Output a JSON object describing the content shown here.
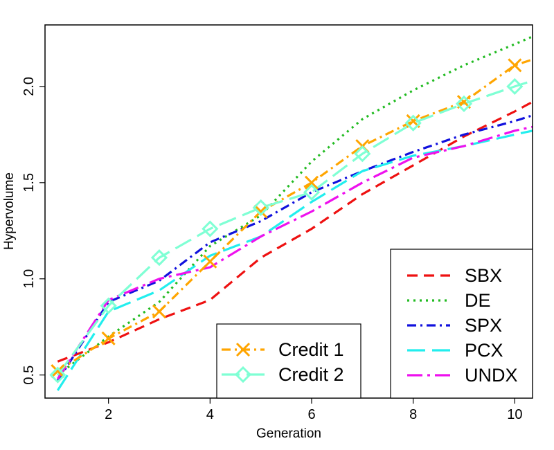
{
  "chart_data": {
    "type": "line",
    "title": "",
    "xlabel": "Generation",
    "ylabel": "Hypervolume",
    "xlim": [
      0.75,
      10.35
    ],
    "ylim": [
      0.38,
      2.32
    ],
    "x_ticks": [
      2,
      4,
      6,
      8,
      10
    ],
    "y_ticks": [
      0.5,
      1.0,
      1.5,
      2.0
    ],
    "x_tick_labels": [
      "2",
      "4",
      "6",
      "8",
      "10"
    ],
    "y_tick_labels": [
      "0.5",
      "1.0",
      "1.5",
      "2.0"
    ],
    "grid": false,
    "legends": [
      {
        "placement": "bottom-right",
        "entries": [
          "SBX",
          "DE",
          "SPX",
          "PCX",
          "UNDX"
        ]
      },
      {
        "placement": "bottom-center",
        "entries": [
          "Credit 1",
          "Credit 2"
        ]
      }
    ],
    "series": [
      {
        "name": "SBX",
        "color": "#ee1111",
        "dash": "dashed",
        "marker": "none",
        "x": [
          1,
          2,
          3,
          4,
          5,
          6,
          7,
          8,
          9,
          10,
          10.35
        ],
        "y": [
          0.57,
          0.67,
          0.79,
          0.89,
          1.11,
          1.26,
          1.44,
          1.59,
          1.74,
          1.87,
          1.92
        ]
      },
      {
        "name": "DE",
        "color": "#22bb22",
        "dash": "dotted",
        "marker": "none",
        "x": [
          1,
          2,
          3,
          4,
          5,
          6,
          7,
          8,
          9,
          10,
          10.35
        ],
        "y": [
          0.5,
          0.7,
          0.88,
          1.17,
          1.33,
          1.61,
          1.83,
          1.98,
          2.11,
          2.22,
          2.26
        ]
      },
      {
        "name": "SPX",
        "color": "#1111dd",
        "dash": "dashdot",
        "marker": "none",
        "x": [
          1,
          2,
          3,
          4,
          5,
          6,
          7,
          8,
          9,
          10,
          10.35
        ],
        "y": [
          0.47,
          0.88,
          0.99,
          1.19,
          1.3,
          1.45,
          1.56,
          1.66,
          1.75,
          1.82,
          1.85
        ]
      },
      {
        "name": "PCX",
        "color": "#22eeee",
        "dash": "longdash",
        "marker": "none",
        "x": [
          1,
          2,
          3,
          4,
          5,
          6,
          7,
          8,
          9,
          10,
          10.35
        ],
        "y": [
          0.42,
          0.83,
          0.94,
          1.12,
          1.22,
          1.4,
          1.56,
          1.64,
          1.69,
          1.75,
          1.77
        ]
      },
      {
        "name": "UNDX",
        "color": "#ee11ee",
        "dash": "dashdot-long",
        "marker": "none",
        "x": [
          1,
          2,
          3,
          4,
          5,
          6,
          7,
          8,
          9,
          10,
          10.35
        ],
        "y": [
          0.48,
          0.89,
          1.0,
          1.06,
          1.22,
          1.35,
          1.5,
          1.63,
          1.69,
          1.77,
          1.79
        ]
      },
      {
        "name": "Credit 1",
        "color": "#ffa500",
        "dash": "dashdot",
        "marker": "x",
        "x": [
          1,
          2,
          3,
          4,
          5,
          6,
          7,
          8,
          9,
          10,
          10.35
        ],
        "y": [
          0.52,
          0.69,
          0.83,
          1.09,
          1.35,
          1.5,
          1.69,
          1.82,
          1.92,
          2.11,
          2.14
        ]
      },
      {
        "name": "Credit 2",
        "color": "#7fffd4",
        "dash": "longdash",
        "marker": "diamond",
        "x": [
          1,
          2,
          3,
          4,
          5,
          6,
          7,
          8,
          9,
          10,
          10.35
        ],
        "y": [
          0.5,
          0.86,
          1.11,
          1.26,
          1.37,
          1.45,
          1.65,
          1.81,
          1.91,
          2.0,
          2.03
        ]
      }
    ]
  },
  "colors": {
    "background": "#ffffff",
    "frame": "#000000"
  }
}
